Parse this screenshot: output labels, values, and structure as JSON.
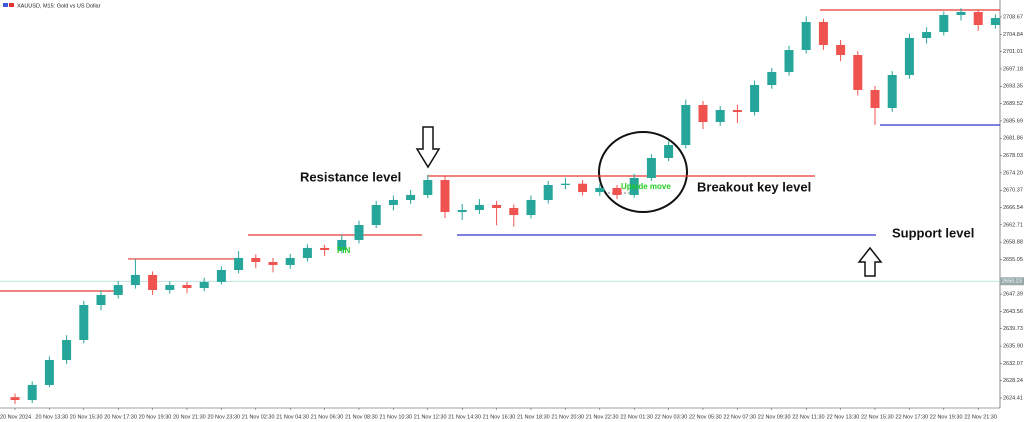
{
  "chart_data": {
    "type": "candlestick",
    "title": "XAUUSD, M15:  Gold vs US Dollar",
    "categories": [
      "20 Nov 2024",
      null,
      "20 Nov 13:30",
      null,
      "20 Nov 15:30",
      null,
      "20 Nov 17:30",
      null,
      "20 Nov 19:30",
      null,
      "20 Nov 21:30",
      null,
      "20 Nov 23:30",
      null,
      "21 Nov 02:30",
      null,
      "21 Nov 04:30",
      null,
      "21 Nov 06:30",
      null,
      "21 Nov 08:30",
      null,
      "21 Nov 10:30",
      null,
      "21 Nov 12:30",
      null,
      "21 Nov 14:30",
      null,
      "21 Nov 16:30",
      null,
      "21 Nov 18:30",
      null,
      "21 Nov 20:30",
      null,
      "21 Nov 22:30",
      null,
      "22 Nov 01:30",
      null,
      "22 Nov 03:30",
      null,
      "22 Nov 05:30",
      null,
      "22 Nov 07:30",
      null,
      "22 Nov 09:30",
      null,
      "22 Nov 11:30",
      null,
      "22 Nov 13:30",
      null,
      "22 Nov 15:30",
      null,
      "22 Nov 17:30",
      null,
      "22 Nov 19:30",
      null,
      "22 Nov 21:30",
      null
    ],
    "open": [
      2624.6,
      2623.97,
      2627.29,
      2632.82,
      2637.24,
      2644.98,
      2647.19,
      2649.4,
      2651.62,
      2648.3,
      2649.4,
      2648.74,
      2650.07,
      2652.72,
      2655.38,
      2654.49,
      2653.83,
      2655.38,
      2657.59,
      2657.14,
      2659.36,
      2662.67,
      2667.1,
      2668.2,
      2669.31,
      2672.62,
      2665.55,
      2665.99,
      2667.1,
      2666.43,
      2664.88,
      2668.2,
      2671.52,
      2671.8,
      2669.97,
      2670.86,
      2669.31,
      2673.07,
      2677.49,
      2680.36,
      2689.21,
      2685.45,
      2688.1,
      2687.66,
      2693.63,
      2696.51,
      2701.37,
      2707.56,
      2702.48,
      2700.27,
      2692.53,
      2688.55,
      2695.84,
      2704.03,
      2705.35,
      2709.11,
      2709.78,
      2706.9
    ],
    "high": [
      2625.4,
      2628.1,
      2633.6,
      2638.3,
      2645.9,
      2648.2,
      2650.3,
      2655.1,
      2652.4,
      2650.2,
      2650.1,
      2651.0,
      2653.5,
      2656.9,
      2656.2,
      2655.4,
      2656.3,
      2658.4,
      2658.3,
      2660.5,
      2663.6,
      2668.0,
      2669.2,
      2670.4,
      2673.8,
      2673.4,
      2667.3,
      2668.4,
      2668.0,
      2667.2,
      2669.2,
      2672.4,
      2673.1,
      2672.6,
      2671.7,
      2671.5,
      2674.0,
      2678.3,
      2681.2,
      2690.4,
      2690.1,
      2689.0,
      2689.3,
      2694.6,
      2697.4,
      2702.3,
      2708.8,
      2708.3,
      2703.6,
      2701.1,
      2693.4,
      2696.7,
      2705.0,
      2706.4,
      2709.9,
      2710.6,
      2710.4,
      2709.2
    ],
    "low": [
      2623.1,
      2623.3,
      2626.8,
      2631.9,
      2636.5,
      2643.8,
      2646.4,
      2648.6,
      2647.2,
      2647.5,
      2647.6,
      2648.0,
      2649.5,
      2652.0,
      2653.1,
      2652.2,
      2653.0,
      2654.6,
      2655.8,
      2656.4,
      2658.6,
      2662.0,
      2665.9,
      2667.3,
      2668.6,
      2664.2,
      2663.8,
      2665.1,
      2662.6,
      2662.3,
      2664.1,
      2667.4,
      2670.6,
      2669.2,
      2669.1,
      2668.4,
      2668.7,
      2672.4,
      2676.8,
      2679.6,
      2683.9,
      2684.6,
      2685.2,
      2686.9,
      2692.8,
      2695.7,
      2700.6,
      2701.4,
      2698.9,
      2691.3,
      2684.8,
      2687.7,
      2695.0,
      2702.8,
      2704.6,
      2707.9,
      2705.6,
      2706.1
    ],
    "close": [
      2623.97,
      2627.29,
      2632.82,
      2637.24,
      2644.98,
      2647.19,
      2649.4,
      2651.62,
      2648.3,
      2649.4,
      2648.74,
      2650.07,
      2652.72,
      2655.38,
      2654.49,
      2653.83,
      2655.38,
      2657.59,
      2657.14,
      2659.36,
      2662.67,
      2667.1,
      2668.2,
      2669.31,
      2672.62,
      2665.55,
      2665.99,
      2667.1,
      2666.43,
      2664.88,
      2668.2,
      2671.52,
      2671.8,
      2669.97,
      2670.86,
      2669.31,
      2673.07,
      2677.49,
      2680.36,
      2689.21,
      2685.45,
      2688.1,
      2687.66,
      2693.63,
      2696.51,
      2701.37,
      2707.56,
      2702.48,
      2700.27,
      2692.53,
      2688.55,
      2695.84,
      2704.03,
      2705.35,
      2709.11,
      2709.78,
      2706.9,
      2708.45
    ],
    "up_color": "#26a69a",
    "down_color": "#ef5350",
    "ylim": [
      2622.2,
      2712.43
    ],
    "yticks": [
      2708.67,
      2704.84,
      2701.01,
      2697.18,
      2693.35,
      2689.52,
      2685.69,
      2681.86,
      2678.03,
      {
        "value": 2674.2,
        "label": "2674.20"
      },
      2670.37,
      2666.54,
      2662.71,
      2658.88,
      2655.05,
      2647.39,
      2643.56,
      2639.73,
      {
        "value": 2635.9,
        "label": "2635.90"
      },
      2632.07,
      2628.24,
      2624.41
    ],
    "current_price": 2650.23,
    "current_color": "#a8d8d0",
    "grid": false,
    "levels": [
      {
        "value": 2648.08,
        "color": "#e53935"
      },
      {
        "value": 2655.16,
        "color": "#e53935"
      },
      {
        "value": 2660.46,
        "color": "#e53935"
      },
      {
        "value": 2673.51,
        "color": "#e53935"
      },
      {
        "value": 2710.22,
        "color": "#e53935"
      },
      {
        "value": 2660.46,
        "color": "#3333cc"
      },
      {
        "value": 2684.79,
        "color": "#3333cc"
      }
    ],
    "annotations": [
      "Resistance level",
      "Breakout key level",
      "Support level",
      "PIN",
      "Upside move"
    ]
  }
}
